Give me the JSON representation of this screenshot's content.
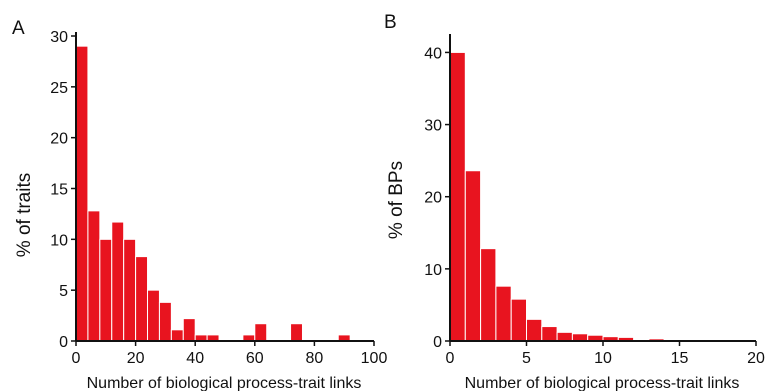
{
  "chart_data": [
    {
      "type": "bar",
      "panel": "A",
      "xlabel": "Number of biological process-trait links",
      "ylabel": "% of traits",
      "xlim": [
        0,
        100
      ],
      "ylim": [
        0,
        30
      ],
      "xticks": [
        "0",
        "20",
        "40",
        "60",
        "80",
        "100"
      ],
      "yticks": [
        "0",
        "5",
        "10",
        "15",
        "20",
        "25",
        "30"
      ],
      "bin_width": 4,
      "bins_start": [
        0,
        4,
        8,
        12,
        16,
        20,
        24,
        28,
        32,
        36,
        40,
        44,
        48,
        52,
        56,
        60,
        64,
        68,
        72,
        76,
        80,
        84,
        88
      ],
      "values": [
        29,
        12.8,
        10,
        11.7,
        10,
        8.3,
        5,
        3.8,
        1.1,
        2.2,
        0.6,
        0.6,
        0,
        0,
        0.6,
        1.7,
        0,
        0,
        1.7,
        0,
        0,
        0,
        0.6
      ]
    },
    {
      "type": "bar",
      "panel": "B",
      "xlabel": "Number of biological process-trait links",
      "ylabel": "% of BPs",
      "xlim": [
        0,
        20
      ],
      "ylim": [
        0,
        42
      ],
      "xticks": [
        "0",
        "5",
        "10",
        "15",
        "20"
      ],
      "yticks": [
        "0",
        "10",
        "20",
        "30",
        "40"
      ],
      "bin_width": 1,
      "bins_start": [
        0,
        1,
        2,
        3,
        4,
        5,
        6,
        7,
        8,
        9,
        10,
        11,
        12,
        13,
        14,
        15,
        16,
        17
      ],
      "values": [
        40,
        23.6,
        12.8,
        7.6,
        5.8,
        3,
        2,
        1.2,
        1,
        0.8,
        0.6,
        0.5,
        0.1,
        0.3,
        0.2,
        0.1,
        0.1,
        0.2
      ]
    }
  ]
}
